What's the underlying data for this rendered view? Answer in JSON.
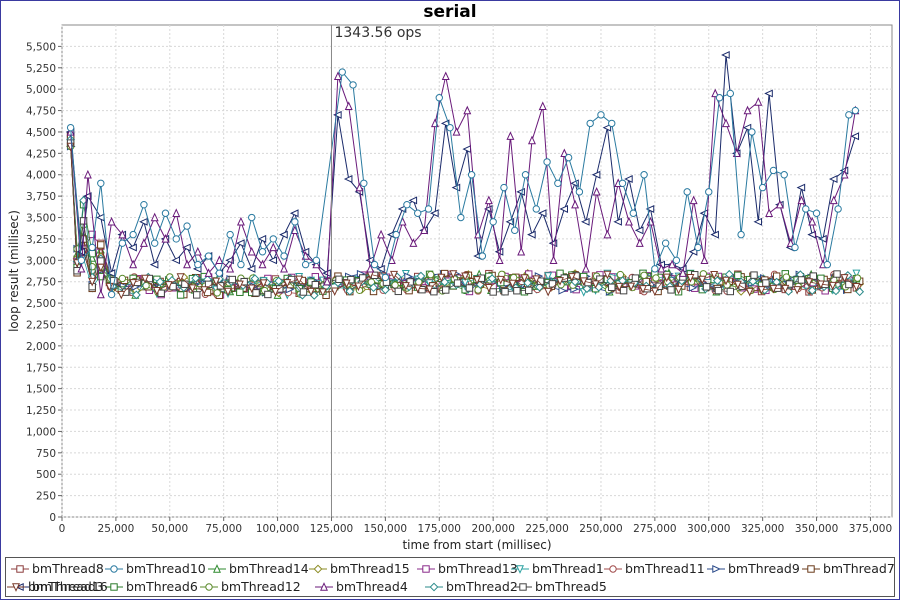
{
  "chart_data": {
    "type": "line",
    "title": "serial",
    "xlabel": "time from start (millisec)",
    "ylabel": "loop result (millisec)",
    "xlim": [
      0,
      385000
    ],
    "ylim": [
      0,
      5750
    ],
    "x_ticks": [
      "0",
      "25,000",
      "50,000",
      "75,000",
      "100,000",
      "125,000",
      "150,000",
      "175,000",
      "200,000",
      "225,000",
      "250,000",
      "275,000",
      "300,000",
      "325,000",
      "350,000",
      "375,000"
    ],
    "y_ticks": [
      "0",
      "250",
      "500",
      "750",
      "1,000",
      "1,250",
      "1,500",
      "1,750",
      "2,000",
      "2,250",
      "2,500",
      "2,750",
      "3,000",
      "3,250",
      "3,500",
      "3,750",
      "4,000",
      "4,250",
      "4,500",
      "4,750",
      "5,000",
      "5,250",
      "5,500"
    ],
    "grid": true,
    "legend_position": "bottom",
    "marker": {
      "x": 125000,
      "label": "1343.56 ops"
    },
    "series": [
      {
        "name": "bmThread8",
        "color": "#8c3c3c",
        "shape": "square"
      },
      {
        "name": "bmThread10",
        "color": "#2a7aa0",
        "shape": "circle"
      },
      {
        "name": "bmThread14",
        "color": "#2e8a2e",
        "shape": "triangle-up"
      },
      {
        "name": "bmThread15",
        "color": "#8a8a20",
        "shape": "diamond"
      },
      {
        "name": "bmThread13",
        "color": "#8a2a8a",
        "shape": "square"
      },
      {
        "name": "bmThread1",
        "color": "#2aa0a0",
        "shape": "triangle-down"
      },
      {
        "name": "bmThread11",
        "color": "#a04a4a",
        "shape": "circle"
      },
      {
        "name": "bmThread9",
        "color": "#2a4a8a",
        "shape": "triangle-right"
      },
      {
        "name": "bmThread7",
        "color": "#6a3a1a",
        "shape": "square"
      },
      {
        "name": "bmThread3",
        "color": "#1a2a6a",
        "shape": "triangle-left"
      },
      {
        "name": "bmThread6",
        "color": "#2a7a2a",
        "shape": "square"
      },
      {
        "name": "bmThread12",
        "color": "#5a8a2a",
        "shape": "circle"
      },
      {
        "name": "bmThread4",
        "color": "#6a1a7a",
        "shape": "triangle-up"
      },
      {
        "name": "bmThread2",
        "color": "#2a8a8a",
        "shape": "diamond"
      },
      {
        "name": "bmThread5",
        "color": "#444444",
        "shape": "square"
      },
      {
        "name": "bmThread16",
        "color": "#7a3a2a",
        "shape": "triangle-down"
      }
    ],
    "high_series": {
      "bmThread3": [
        [
          4000,
          4500
        ],
        [
          9000,
          3100
        ],
        [
          12000,
          3750
        ],
        [
          18000,
          3500
        ],
        [
          23000,
          2850
        ],
        [
          28000,
          3300
        ],
        [
          33000,
          3150
        ],
        [
          38000,
          3450
        ],
        [
          43000,
          2950
        ],
        [
          48000,
          3250
        ],
        [
          53000,
          3000
        ],
        [
          58000,
          3150
        ],
        [
          63000,
          2900
        ],
        [
          68000,
          3050
        ],
        [
          73000,
          2850
        ],
        [
          78000,
          3000
        ],
        [
          83000,
          3200
        ],
        [
          88000,
          2900
        ],
        [
          93000,
          3250
        ],
        [
          98000,
          3000
        ],
        [
          103000,
          3300
        ],
        [
          108000,
          3550
        ],
        [
          113000,
          3100
        ],
        [
          118000,
          2950
        ],
        [
          123000,
          2850
        ],
        [
          128000,
          4700
        ],
        [
          133000,
          3950
        ],
        [
          138000,
          3800
        ],
        [
          143000,
          3000
        ],
        [
          148000,
          2900
        ],
        [
          153000,
          3300
        ],
        [
          158000,
          3600
        ],
        [
          163000,
          3700
        ],
        [
          168000,
          3350
        ],
        [
          173000,
          3550
        ],
        [
          178000,
          4600
        ],
        [
          183000,
          3850
        ],
        [
          188000,
          4300
        ],
        [
          193000,
          3050
        ],
        [
          198000,
          3600
        ],
        [
          203000,
          3100
        ],
        [
          208000,
          3450
        ],
        [
          213000,
          3800
        ],
        [
          218000,
          3300
        ],
        [
          223000,
          3550
        ],
        [
          228000,
          3200
        ],
        [
          233000,
          3600
        ],
        [
          238000,
          3900
        ],
        [
          243000,
          3450
        ],
        [
          248000,
          4000
        ],
        [
          253000,
          4550
        ],
        [
          258000,
          3450
        ],
        [
          263000,
          3950
        ],
        [
          268000,
          3350
        ],
        [
          273000,
          3600
        ],
        [
          278000,
          2950
        ],
        [
          283000,
          2950
        ],
        [
          288000,
          2900
        ],
        [
          293000,
          3100
        ],
        [
          298000,
          3550
        ],
        [
          303000,
          3300
        ],
        [
          308000,
          5400
        ],
        [
          313000,
          4250
        ],
        [
          318000,
          4550
        ],
        [
          323000,
          3450
        ],
        [
          328000,
          4950
        ],
        [
          333000,
          3650
        ],
        [
          338000,
          3150
        ],
        [
          343000,
          3850
        ],
        [
          348000,
          3300
        ],
        [
          353000,
          3250
        ],
        [
          358000,
          3950
        ],
        [
          363000,
          4050
        ],
        [
          368000,
          4450
        ]
      ],
      "bmThread4": [
        [
          4000,
          4500
        ],
        [
          9000,
          2900
        ],
        [
          12000,
          4000
        ],
        [
          18000,
          2600
        ],
        [
          23000,
          3450
        ],
        [
          28000,
          3300
        ],
        [
          33000,
          2950
        ],
        [
          38000,
          3200
        ],
        [
          43000,
          3500
        ],
        [
          48000,
          3250
        ],
        [
          53000,
          3550
        ],
        [
          58000,
          2950
        ],
        [
          63000,
          3100
        ],
        [
          68000,
          2850
        ],
        [
          73000,
          3000
        ],
        [
          78000,
          2900
        ],
        [
          83000,
          3450
        ],
        [
          88000,
          3100
        ],
        [
          93000,
          2950
        ],
        [
          98000,
          3150
        ],
        [
          103000,
          2900
        ],
        [
          108000,
          3350
        ],
        [
          113000,
          3050
        ],
        [
          118000,
          2950
        ],
        [
          123000,
          2750
        ],
        [
          128000,
          5150
        ],
        [
          133000,
          4800
        ],
        [
          138000,
          3850
        ],
        [
          143000,
          2900
        ],
        [
          148000,
          3300
        ],
        [
          153000,
          3000
        ],
        [
          158000,
          3450
        ],
        [
          163000,
          3200
        ],
        [
          168000,
          3350
        ],
        [
          173000,
          4600
        ],
        [
          178000,
          5150
        ],
        [
          183000,
          4500
        ],
        [
          188000,
          4750
        ],
        [
          193000,
          3300
        ],
        [
          198000,
          3700
        ],
        [
          203000,
          3000
        ],
        [
          208000,
          4450
        ],
        [
          213000,
          3100
        ],
        [
          218000,
          4400
        ],
        [
          223000,
          4800
        ],
        [
          228000,
          3000
        ],
        [
          233000,
          4250
        ],
        [
          238000,
          3650
        ],
        [
          243000,
          2900
        ],
        [
          248000,
          3800
        ],
        [
          253000,
          3300
        ],
        [
          258000,
          3900
        ],
        [
          263000,
          3450
        ],
        [
          268000,
          3200
        ],
        [
          273000,
          3450
        ],
        [
          278000,
          2900
        ],
        [
          283000,
          2950
        ],
        [
          288000,
          2850
        ],
        [
          293000,
          3700
        ],
        [
          298000,
          3000
        ],
        [
          303000,
          4950
        ],
        [
          308000,
          4600
        ],
        [
          313000,
          4250
        ],
        [
          318000,
          4750
        ],
        [
          323000,
          4850
        ],
        [
          328000,
          3550
        ],
        [
          333000,
          3650
        ],
        [
          338000,
          3200
        ],
        [
          343000,
          3700
        ],
        [
          348000,
          3450
        ],
        [
          353000,
          2950
        ],
        [
          358000,
          3700
        ],
        [
          363000,
          4000
        ],
        [
          368000,
          4750
        ]
      ],
      "bmThread10": [
        [
          4000,
          4550
        ],
        [
          9000,
          3000
        ],
        [
          14000,
          3150
        ],
        [
          18000,
          3900
        ],
        [
          23000,
          2600
        ],
        [
          28000,
          3200
        ],
        [
          33000,
          3300
        ],
        [
          38000,
          3650
        ],
        [
          43000,
          3200
        ],
        [
          48000,
          3550
        ],
        [
          53000,
          3250
        ],
        [
          58000,
          3400
        ],
        [
          63000,
          2950
        ],
        [
          68000,
          3050
        ],
        [
          73000,
          2850
        ],
        [
          78000,
          3300
        ],
        [
          83000,
          2950
        ],
        [
          88000,
          3500
        ],
        [
          93000,
          3100
        ],
        [
          98000,
          3250
        ],
        [
          103000,
          3050
        ],
        [
          108000,
          3450
        ],
        [
          113000,
          2950
        ],
        [
          118000,
          3000
        ],
        [
          130000,
          5200
        ],
        [
          135000,
          5050
        ],
        [
          140000,
          3900
        ],
        [
          145000,
          2950
        ],
        [
          150000,
          2800
        ],
        [
          155000,
          3300
        ],
        [
          160000,
          3650
        ],
        [
          165000,
          3550
        ],
        [
          170000,
          3600
        ],
        [
          175000,
          4900
        ],
        [
          180000,
          4550
        ],
        [
          185000,
          3500
        ],
        [
          190000,
          4000
        ],
        [
          195000,
          3050
        ],
        [
          200000,
          3450
        ],
        [
          205000,
          3850
        ],
        [
          210000,
          3350
        ],
        [
          215000,
          4000
        ],
        [
          220000,
          3600
        ],
        [
          225000,
          4150
        ],
        [
          230000,
          3900
        ],
        [
          235000,
          4200
        ],
        [
          240000,
          3800
        ],
        [
          245000,
          4600
        ],
        [
          250000,
          4700
        ],
        [
          255000,
          4600
        ],
        [
          260000,
          3900
        ],
        [
          265000,
          3550
        ],
        [
          270000,
          4000
        ],
        [
          275000,
          2900
        ],
        [
          280000,
          3200
        ],
        [
          285000,
          3000
        ],
        [
          290000,
          3800
        ],
        [
          295000,
          3150
        ],
        [
          300000,
          3800
        ],
        [
          305000,
          4900
        ],
        [
          310000,
          4950
        ],
        [
          315000,
          3300
        ],
        [
          320000,
          4500
        ],
        [
          325000,
          3850
        ],
        [
          330000,
          4050
        ],
        [
          335000,
          4000
        ],
        [
          340000,
          3150
        ],
        [
          345000,
          3600
        ],
        [
          350000,
          3550
        ],
        [
          355000,
          2950
        ],
        [
          360000,
          3600
        ],
        [
          365000,
          4700
        ],
        [
          368000,
          4750
        ]
      ]
    },
    "base_band": {
      "center": 2700,
      "spread": 110,
      "x_start": 4000,
      "x_end": 370000,
      "step": 2500
    }
  }
}
